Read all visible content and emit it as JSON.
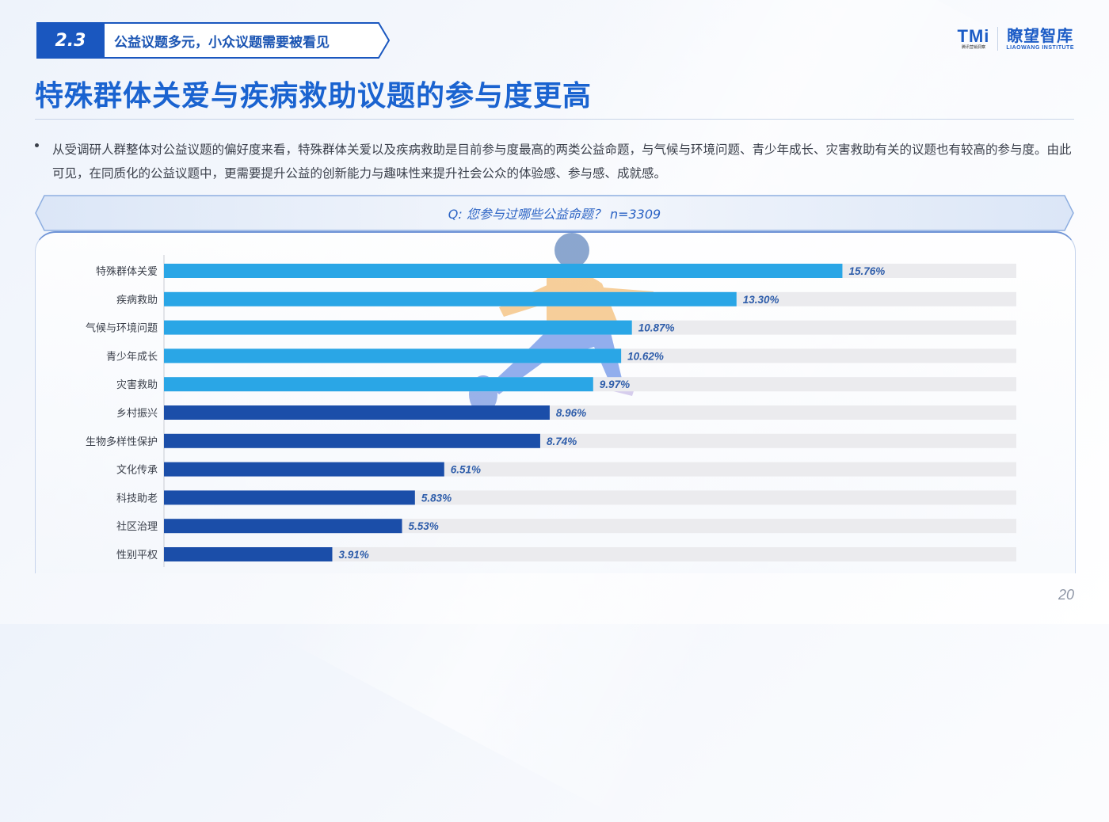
{
  "section": {
    "number": "2.3",
    "title": "公益议题多元，小众议题需要被看见"
  },
  "logo": {
    "tmi_mark": "TMi",
    "tmi_sub": "腾讯营销洞察",
    "lw_cn": "瞭望智库",
    "lw_en": "LIAOWANG INSTITUTE"
  },
  "page": {
    "title": "特殊群体关爱与疾病救助议题的参与度更高",
    "bullet": "从受调研人群整体对公益议题的偏好度来看，特殊群体关爱以及疾病救助是目前参与度最高的两类公益命题，与气候与环境问题、青少年成长、灾害救助有关的议题也有较高的参与度。由此可见，在同质化的公益议题中，更需要提升公益的创新能力与趣味性来提升社会公众的体验感、参与感、成就感。",
    "question": "Q: 您参与过哪些公益命题？ n=3309",
    "page_number": "20"
  },
  "colors": {
    "light_bar": "#2aa6e6",
    "dark_bar": "#1b4ea9",
    "track": "#ebebee",
    "label": "#2e5daa",
    "accent": "#1a63d0"
  },
  "chart_data": {
    "type": "bar",
    "orientation": "horizontal",
    "categories": [
      "特殊群体关爱",
      "疾病救助",
      "气候与环境问题",
      "青少年成长",
      "灾害救助",
      "乡村振兴",
      "生物多样性保护",
      "文化传承",
      "科技助老",
      "社区治理",
      "性别平权"
    ],
    "values": [
      15.76,
      13.3,
      10.87,
      10.62,
      9.97,
      8.96,
      8.74,
      6.51,
      5.83,
      5.53,
      3.91
    ],
    "value_labels": [
      "15.76%",
      "13.30%",
      "10.87%",
      "10.62%",
      "9.97%",
      "8.96%",
      "8.74%",
      "6.51%",
      "5.83%",
      "5.53%",
      "3.91%"
    ],
    "highlight_top": 5,
    "xlim": [
      0,
      19.8
    ],
    "grid": false,
    "title": "",
    "xlabel": "",
    "ylabel": ""
  }
}
